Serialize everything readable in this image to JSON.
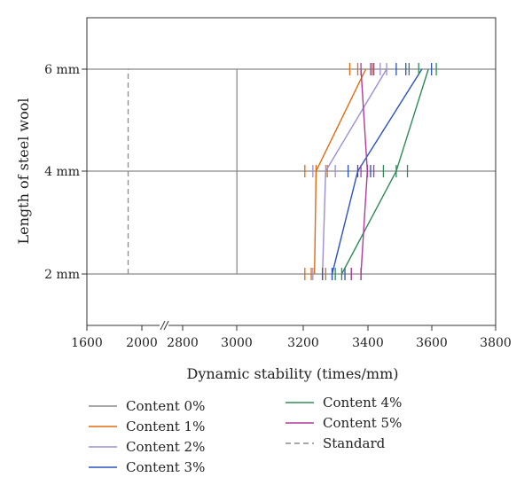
{
  "chart_data": {
    "type": "line",
    "title": "",
    "xlabel": "Dynamic stability (times/mm)",
    "ylabel": "Length of steel wool",
    "x_axis_break": true,
    "x_ticks": [
      "1600",
      "2000",
      "2800",
      "3000",
      "3200",
      "3400",
      "3600",
      "3800"
    ],
    "y_categories": [
      "2 mm",
      "4 mm",
      "6 mm"
    ],
    "grid": "horizontal",
    "standard_value": 1900,
    "reference_value": 2980,
    "series": [
      {
        "name": "Content 0%",
        "color": "#8c8c8c",
        "style": "solid",
        "x": [
          2980,
          2980,
          2980
        ],
        "errors": []
      },
      {
        "name": "Content 1%",
        "color": "#e06a10",
        "style": "solid",
        "x": [
          3235,
          3240,
          3395
        ],
        "errors": [
          [
            3205,
            3225,
            3270
          ],
          [
            3205,
            3240,
            3275
          ],
          [
            3345,
            3370,
            3415
          ]
        ]
      },
      {
        "name": "Content 2%",
        "color": "#9b8fd4",
        "style": "solid",
        "x": [
          3260,
          3270,
          3460
        ],
        "errors": [
          [
            3230,
            3260,
            3290
          ],
          [
            3230,
            3270,
            3300
          ],
          [
            3420,
            3440,
            3460
          ]
        ]
      },
      {
        "name": "Content 3%",
        "color": "#2a52be",
        "style": "solid",
        "x": [
          3290,
          3370,
          3570
        ],
        "errors": [
          [
            3260,
            3290,
            3330
          ],
          [
            3340,
            3370,
            3410
          ],
          [
            3490,
            3520,
            3600
          ]
        ]
      },
      {
        "name": "Content 4%",
        "color": "#2e8b57",
        "style": "solid",
        "x": [
          3320,
          3490,
          3590
        ],
        "errors": [
          [
            3300,
            3320,
            3350
          ],
          [
            3450,
            3490,
            3525
          ],
          [
            3530,
            3560,
            3615
          ]
        ]
      },
      {
        "name": "Content 5%",
        "color": "#b03aa0",
        "style": "solid",
        "x": [
          3380,
          3400,
          3380
        ],
        "errors": [
          [
            3350,
            3380,
            3380
          ],
          [
            3380,
            3400,
            3420
          ],
          [
            3410,
            3380,
            3420
          ]
        ]
      },
      {
        "name": "Standard",
        "color": "#8c8c8c",
        "style": "dashed",
        "x": [
          1900,
          1900,
          1900
        ],
        "errors": []
      }
    ]
  }
}
